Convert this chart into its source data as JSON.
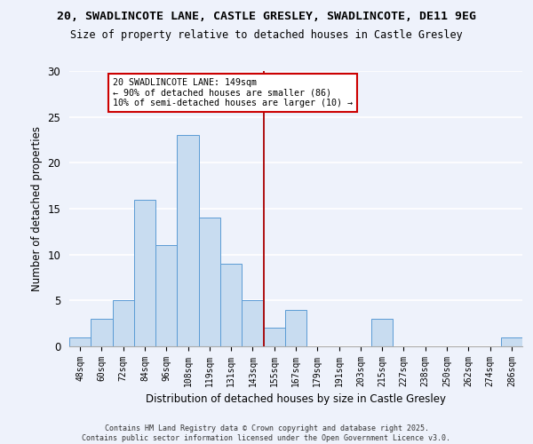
{
  "title_line1": "20, SWADLINCOTE LANE, CASTLE GRESLEY, SWADLINCOTE, DE11 9EG",
  "title_line2": "Size of property relative to detached houses in Castle Gresley",
  "xlabel": "Distribution of detached houses by size in Castle Gresley",
  "ylabel": "Number of detached properties",
  "bar_labels": [
    "48sqm",
    "60sqm",
    "72sqm",
    "84sqm",
    "96sqm",
    "108sqm",
    "119sqm",
    "131sqm",
    "143sqm",
    "155sqm",
    "167sqm",
    "179sqm",
    "191sqm",
    "203sqm",
    "215sqm",
    "227sqm",
    "238sqm",
    "250sqm",
    "262sqm",
    "274sqm",
    "286sqm"
  ],
  "bar_values": [
    1,
    3,
    5,
    16,
    11,
    23,
    14,
    9,
    5,
    2,
    4,
    0,
    0,
    0,
    3,
    0,
    0,
    0,
    0,
    0,
    1
  ],
  "bar_color": "#c8dcf0",
  "bar_edge_color": "#5b9bd5",
  "vline_color": "#aa0000",
  "annotation_text": "20 SWADLINCOTE LANE: 149sqm\n← 90% of detached houses are smaller (86)\n10% of semi-detached houses are larger (10) →",
  "annotation_box_color": "#ffffff",
  "annotation_box_edge_color": "#cc0000",
  "ylim": [
    0,
    30
  ],
  "yticks": [
    0,
    5,
    10,
    15,
    20,
    25,
    30
  ],
  "background_color": "#eef2fb",
  "grid_color": "#ffffff",
  "footer_line1": "Contains HM Land Registry data © Crown copyright and database right 2025.",
  "footer_line2": "Contains public sector information licensed under the Open Government Licence v3.0."
}
